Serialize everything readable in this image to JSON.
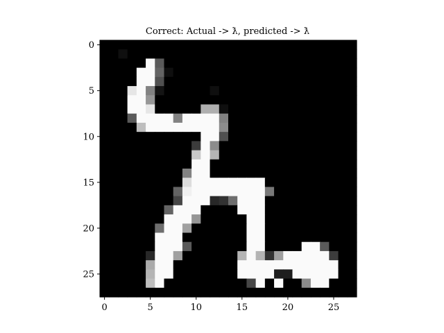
{
  "chart_data": {
    "type": "heatmap",
    "title": "Correct: Actual -> ƛ, predicted -> ƛ",
    "xlabel": "",
    "ylabel": "",
    "x_ticks": [
      0,
      5,
      10,
      15,
      20,
      25
    ],
    "y_ticks": [
      0,
      5,
      10,
      15,
      20,
      25
    ],
    "xlim": [
      -0.5,
      27.5
    ],
    "ylim": [
      27.5,
      -0.5
    ],
    "colormap": "gray",
    "value_range": [
      0,
      255
    ],
    "grid": false,
    "rows": 28,
    "cols": 28,
    "pixels": [
      [
        0,
        0,
        0,
        0,
        0,
        0,
        0,
        0,
        0,
        0,
        0,
        0,
        0,
        0,
        0,
        0,
        0,
        0,
        0,
        0,
        0,
        0,
        0,
        0,
        0,
        0,
        0,
        0
      ],
      [
        0,
        0,
        15,
        0,
        0,
        0,
        0,
        0,
        0,
        0,
        0,
        0,
        0,
        0,
        0,
        0,
        0,
        0,
        0,
        0,
        0,
        0,
        0,
        0,
        0,
        0,
        0,
        0
      ],
      [
        0,
        0,
        0,
        0,
        0,
        250,
        90,
        0,
        0,
        0,
        0,
        0,
        0,
        0,
        0,
        0,
        0,
        0,
        0,
        0,
        0,
        0,
        0,
        0,
        0,
        0,
        0,
        0
      ],
      [
        0,
        0,
        0,
        0,
        250,
        250,
        100,
        15,
        0,
        0,
        0,
        0,
        0,
        0,
        0,
        0,
        0,
        0,
        0,
        0,
        0,
        0,
        0,
        0,
        0,
        0,
        0,
        0
      ],
      [
        0,
        0,
        0,
        0,
        250,
        250,
        80,
        0,
        0,
        0,
        0,
        0,
        0,
        0,
        0,
        0,
        0,
        0,
        0,
        0,
        0,
        0,
        0,
        0,
        0,
        0,
        0,
        0
      ],
      [
        0,
        0,
        0,
        230,
        250,
        130,
        20,
        0,
        0,
        0,
        0,
        0,
        15,
        0,
        0,
        0,
        0,
        0,
        0,
        0,
        0,
        0,
        0,
        0,
        0,
        0,
        0,
        0
      ],
      [
        0,
        0,
        0,
        250,
        250,
        150,
        0,
        0,
        0,
        0,
        0,
        0,
        0,
        0,
        0,
        0,
        0,
        0,
        0,
        0,
        0,
        0,
        0,
        0,
        0,
        0,
        0,
        0
      ],
      [
        0,
        0,
        0,
        250,
        250,
        230,
        0,
        0,
        0,
        0,
        0,
        175,
        175,
        15,
        0,
        0,
        0,
        0,
        0,
        0,
        0,
        0,
        0,
        0,
        0,
        0,
        0,
        0
      ],
      [
        0,
        0,
        0,
        90,
        250,
        250,
        250,
        250,
        130,
        250,
        250,
        250,
        250,
        130,
        0,
        0,
        0,
        0,
        0,
        0,
        0,
        0,
        0,
        0,
        0,
        0,
        0,
        0
      ],
      [
        0,
        0,
        0,
        0,
        190,
        250,
        250,
        250,
        250,
        250,
        250,
        250,
        250,
        140,
        0,
        0,
        0,
        0,
        0,
        0,
        0,
        0,
        0,
        0,
        0,
        0,
        0,
        0
      ],
      [
        0,
        0,
        0,
        0,
        0,
        0,
        0,
        0,
        0,
        0,
        0,
        250,
        250,
        80,
        0,
        0,
        0,
        0,
        0,
        0,
        0,
        0,
        0,
        0,
        0,
        0,
        0,
        0
      ],
      [
        0,
        0,
        0,
        0,
        0,
        0,
        0,
        0,
        0,
        0,
        60,
        250,
        140,
        0,
        0,
        0,
        0,
        0,
        0,
        0,
        0,
        0,
        0,
        0,
        0,
        0,
        0,
        0
      ],
      [
        0,
        0,
        0,
        0,
        0,
        0,
        0,
        0,
        0,
        0,
        200,
        250,
        180,
        0,
        0,
        0,
        0,
        0,
        0,
        0,
        0,
        0,
        0,
        0,
        0,
        0,
        0,
        0
      ],
      [
        0,
        0,
        0,
        0,
        0,
        0,
        0,
        0,
        0,
        0,
        250,
        250,
        0,
        0,
        0,
        0,
        0,
        0,
        0,
        0,
        0,
        0,
        0,
        0,
        0,
        0,
        0,
        0
      ],
      [
        0,
        0,
        0,
        0,
        0,
        0,
        0,
        0,
        0,
        130,
        250,
        250,
        0,
        0,
        0,
        0,
        0,
        0,
        0,
        0,
        0,
        0,
        0,
        0,
        0,
        0,
        0,
        0
      ],
      [
        0,
        0,
        0,
        0,
        0,
        0,
        0,
        0,
        0,
        220,
        250,
        250,
        250,
        250,
        250,
        250,
        250,
        250,
        0,
        0,
        0,
        0,
        0,
        0,
        0,
        0,
        0,
        0
      ],
      [
        0,
        0,
        0,
        0,
        0,
        0,
        0,
        0,
        100,
        240,
        250,
        250,
        250,
        250,
        250,
        250,
        250,
        250,
        120,
        0,
        0,
        0,
        0,
        0,
        0,
        0,
        0,
        0
      ],
      [
        0,
        0,
        0,
        0,
        0,
        0,
        0,
        0,
        70,
        250,
        250,
        250,
        40,
        50,
        110,
        250,
        250,
        250,
        0,
        0,
        0,
        0,
        0,
        0,
        0,
        0,
        0,
        0
      ],
      [
        0,
        0,
        0,
        0,
        0,
        0,
        0,
        100,
        250,
        250,
        250,
        0,
        0,
        0,
        0,
        250,
        250,
        250,
        0,
        0,
        0,
        0,
        0,
        0,
        0,
        0,
        0,
        0
      ],
      [
        0,
        0,
        0,
        0,
        0,
        0,
        0,
        250,
        250,
        250,
        150,
        0,
        0,
        0,
        0,
        0,
        250,
        250,
        0,
        0,
        0,
        0,
        0,
        0,
        0,
        0,
        0,
        0
      ],
      [
        0,
        0,
        0,
        0,
        0,
        0,
        110,
        250,
        250,
        160,
        0,
        0,
        0,
        0,
        0,
        0,
        250,
        250,
        0,
        0,
        0,
        0,
        0,
        0,
        0,
        0,
        0,
        0
      ],
      [
        0,
        0,
        0,
        0,
        0,
        0,
        250,
        250,
        250,
        0,
        0,
        0,
        0,
        0,
        0,
        0,
        250,
        250,
        0,
        0,
        0,
        0,
        0,
        0,
        0,
        0,
        0,
        0
      ],
      [
        0,
        0,
        0,
        0,
        0,
        0,
        250,
        250,
        250,
        90,
        0,
        0,
        0,
        0,
        0,
        0,
        250,
        250,
        0,
        0,
        0,
        0,
        250,
        250,
        90,
        0,
        0,
        0
      ],
      [
        0,
        0,
        0,
        0,
        0,
        40,
        250,
        250,
        160,
        0,
        0,
        0,
        0,
        0,
        0,
        180,
        250,
        180,
        50,
        160,
        250,
        250,
        250,
        250,
        250,
        60,
        0,
        0
      ],
      [
        0,
        0,
        0,
        0,
        0,
        170,
        250,
        250,
        0,
        0,
        0,
        0,
        0,
        0,
        0,
        250,
        250,
        250,
        250,
        250,
        250,
        250,
        250,
        250,
        250,
        250,
        0,
        0
      ],
      [
        0,
        0,
        0,
        0,
        0,
        180,
        250,
        250,
        0,
        0,
        0,
        0,
        0,
        0,
        0,
        250,
        250,
        250,
        250,
        30,
        30,
        250,
        250,
        250,
        250,
        250,
        0,
        0
      ],
      [
        0,
        0,
        0,
        0,
        0,
        190,
        250,
        0,
        0,
        0,
        0,
        0,
        0,
        0,
        0,
        0,
        70,
        250,
        0,
        250,
        0,
        0,
        140,
        250,
        250,
        0,
        0,
        0
      ],
      [
        0,
        0,
        0,
        0,
        0,
        0,
        0,
        0,
        0,
        0,
        0,
        0,
        0,
        0,
        0,
        0,
        0,
        0,
        0,
        0,
        0,
        0,
        0,
        0,
        0,
        0,
        0,
        0
      ]
    ]
  }
}
